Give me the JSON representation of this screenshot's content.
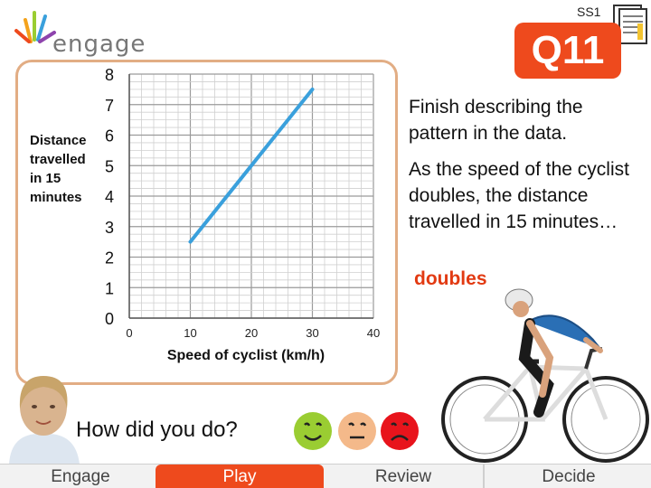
{
  "brand": {
    "logo_text": "engage"
  },
  "header": {
    "section_label": "SS1",
    "question_badge": "Q11"
  },
  "panel": {
    "prompt": "Finish describing the pattern in the data.",
    "statement": "As the speed of the cyclist doubles, the distance travelled in 15 minutes…",
    "answer": "doubles"
  },
  "feedback": {
    "question": "How did you do?"
  },
  "nav": {
    "engage": "Engage",
    "play": "Play",
    "review": "Review",
    "decide": "Decide"
  },
  "colors": {
    "accent": "#ee4a1d",
    "line": "#3aa0dc",
    "card_border": "#e2ad84",
    "answer": "#e23a12"
  },
  "chart_data": {
    "type": "line",
    "xlabel": "Speed of cyclist (km/h)",
    "ylabel_lines": [
      "Distance",
      "travelled",
      "in 15",
      "minutes"
    ],
    "xlim": [
      0,
      40
    ],
    "ylim": [
      0,
      8
    ],
    "x_ticks": [
      0,
      10,
      20,
      30,
      40
    ],
    "y_ticks": [
      0,
      1,
      2,
      3,
      4,
      5,
      6,
      7,
      8
    ],
    "grid": true,
    "series": [
      {
        "x": [
          10,
          30
        ],
        "y": [
          2.5,
          7.5
        ]
      }
    ]
  }
}
